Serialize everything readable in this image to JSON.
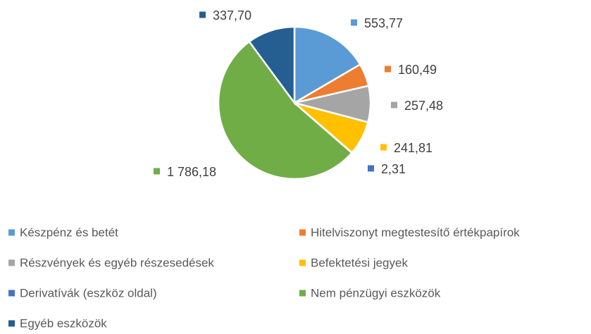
{
  "chart_data": {
    "type": "pie",
    "categories": [
      "Készpénz és betét",
      "Hitelviszonyt megtestesítő értékpapírok",
      "Részvények és egyéb részesedések",
      "Befektetési jegyek",
      "Derivatívák (eszköz oldal)",
      "Nem pénzügyi eszközök",
      "Egyéb eszközök"
    ],
    "values": [
      553.77,
      160.49,
      257.48,
      241.81,
      2.31,
      1786.18,
      337.7
    ],
    "value_labels": [
      "553,77",
      "160,49",
      "257,48",
      "241,81",
      "2,31",
      "1 786,18",
      "337,70"
    ],
    "colors": [
      "#5b9bd5",
      "#ed7d31",
      "#a5a5a5",
      "#ffc000",
      "#4472c4",
      "#70ad47",
      "#255e91"
    ],
    "legend": "bottom"
  }
}
